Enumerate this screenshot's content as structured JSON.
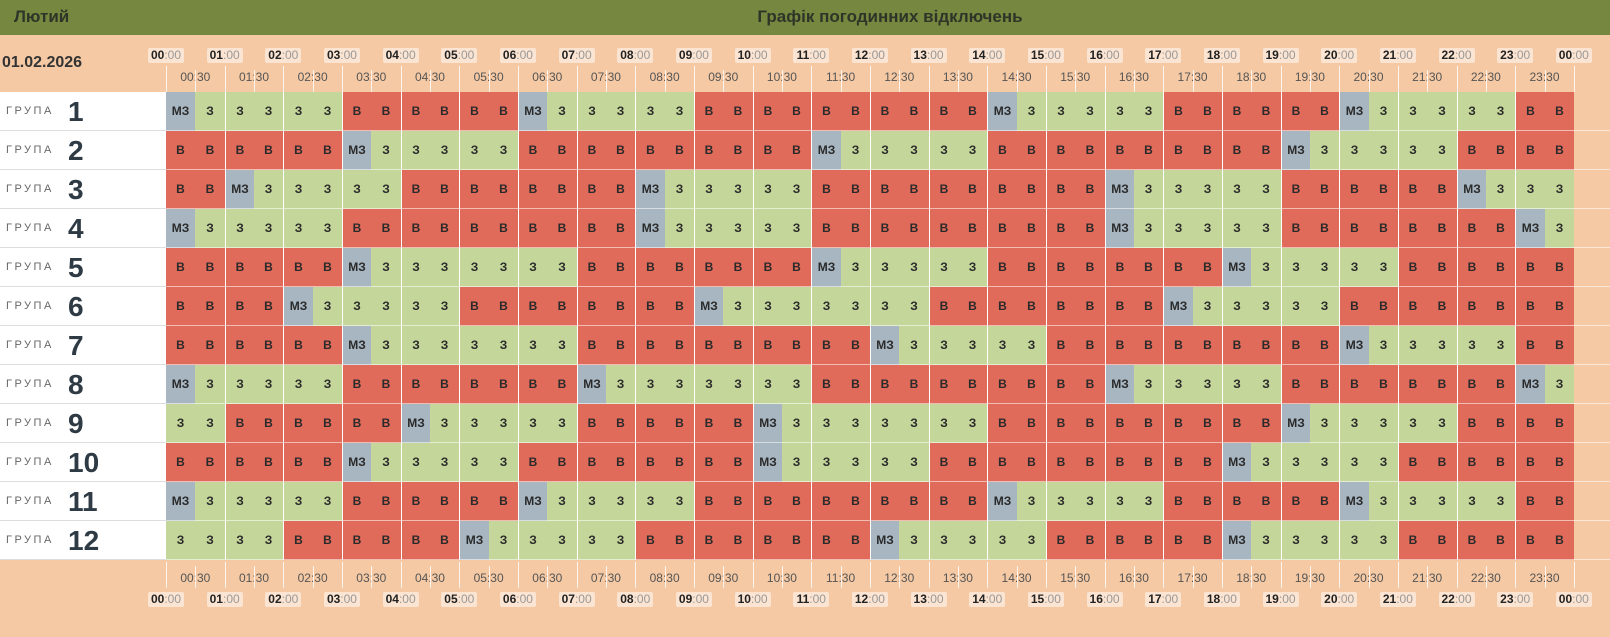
{
  "header": {
    "month": "Лютий",
    "title": "Графік погодинних відключень"
  },
  "date": "01.02.2026",
  "group_word": "ГРУПА",
  "hours": [
    "00:00",
    "01:00",
    "02:00",
    "03:00",
    "04:00",
    "05:00",
    "06:00",
    "07:00",
    "08:00",
    "09:00",
    "10:00",
    "11:00",
    "12:00",
    "13:00",
    "14:00",
    "15:00",
    "16:00",
    "17:00",
    "18:00",
    "19:00",
    "20:00",
    "21:00",
    "22:00",
    "23:00",
    "00:00"
  ],
  "half_hours": [
    "00:30",
    "01:30",
    "02:30",
    "03:30",
    "04:30",
    "05:30",
    "06:30",
    "07:30",
    "08:30",
    "09:30",
    "10:30",
    "11:30",
    "12:30",
    "13:30",
    "14:30",
    "15:30",
    "16:30",
    "17:30",
    "18:30",
    "19:30",
    "20:30",
    "21:30",
    "22:30",
    "23:30"
  ],
  "legend": {
    "B": "В",
    "Z": "З",
    "M": "МЗ"
  },
  "colors": {
    "B": "#e06b5a",
    "Z": "#c4d69a",
    "M": "#a7b6c1",
    "header_bg": "#76873f",
    "page_bg": "#f5c9a4"
  },
  "groups": [
    {
      "number": "1",
      "cells": "MZZZZZBBBBBBMZZZZZBBBBBBBBBBMZZZZZBBBBBBMZZZZZBBBBBB"
    },
    {
      "number": "2",
      "cells": "BBBBBBMZZZZZBBBBBBBBBBMZZZZZBBBBBBBBBBMZZZZZBBBBBBMZZZ"
    },
    {
      "number": "3",
      "cells": "BBMZZZZZBBBBBBBBMZZZZZBBBBBBBBBBMZZZZZBBBBBBMZZZZZBBB"
    },
    {
      "number": "4",
      "cells": "MZZZZZBBBBBBBBBBMZZZZZBBBBBBBBBBMZZZZZBBBBBBBBMZZZZZBB"
    },
    {
      "number": "5",
      "cells": "BBBBBBMZZZZZZZBBBBBBBBMZZZZZBBBBBBBBMZZZZZBBBBBBBBMZZ"
    },
    {
      "number": "6",
      "cells": "BBBBMZZZZZBBBBBBBBMZZZZZZZBBBBBBBBMZZZZZBBBBBBBBMZZZZZ"
    },
    {
      "number": "7",
      "cells": "BBBBBBMZZZZZZZBBBBBBBBBBMZZZZZBBBBBBBBBBMZZZZZBBBBBBBB"
    },
    {
      "number": "8",
      "cells": "MZZZZZBBBBBBBBMZZZZZZZBBBBBBBBBBMZZZZZBBBBBBBBMZZZZZBB"
    },
    {
      "number": "9",
      "cells": "ZZBBBBBBMZZZZZBBBBBBMZZZZZZZBBBBBBBBBBMZZZZZBBBBBBBBMZ"
    },
    {
      "number": "10",
      "cells": "BBBBBBMZZZZZBBBBBBBBMZZZZZBBBBBBBBBBMZZZZZBBBBBBBBMZZZ"
    },
    {
      "number": "11",
      "cells": "MZZZZZBBBBBBMZZZZZBBBBBBBBBBMZZZZZBBBBBBMZZZZZBBBBBBBB"
    },
    {
      "number": "12",
      "cells": "ZZZZBBBBBBMZZZZZBBBBBBBBMZZZZZBBBBBBMZZZZZBBBBBBBBBBBM"
    }
  ]
}
